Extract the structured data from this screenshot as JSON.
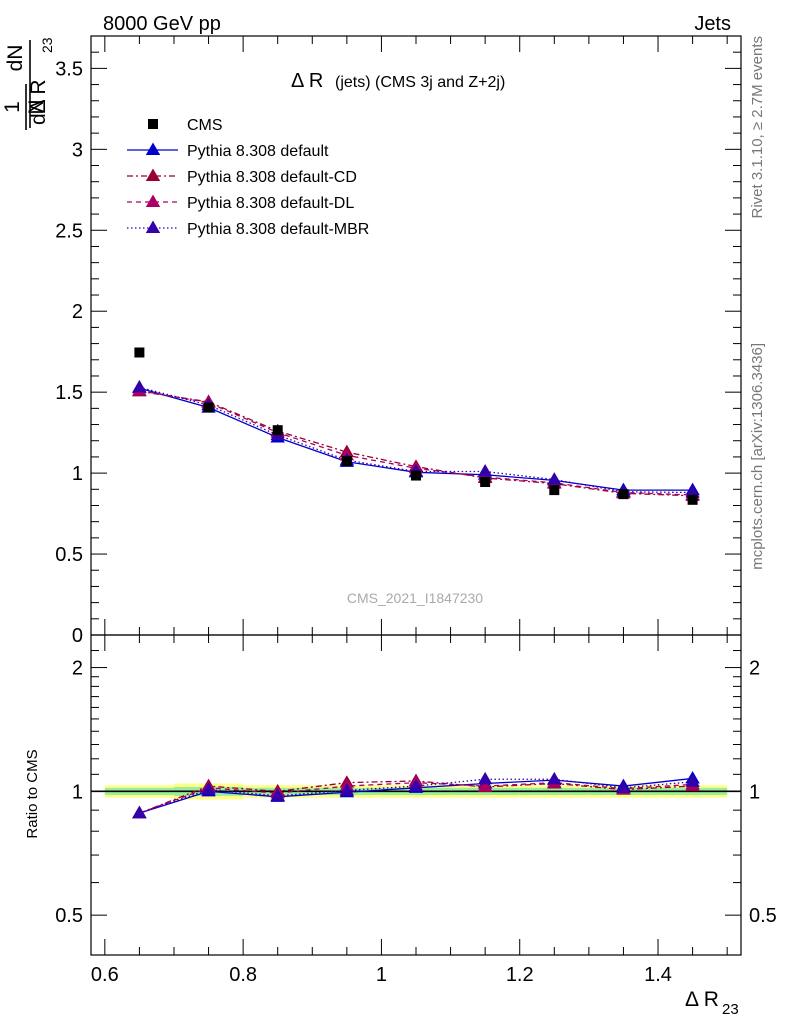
{
  "header": {
    "left": "8000 GeV pp",
    "right": "Jets"
  },
  "side_labels": {
    "rivet": "Rivet 3.1.10, ≥ 2.7M events",
    "mcplots": "mcplots.cern.ch [arXiv:1306.3436]"
  },
  "plot_title": {
    "main": "Δ R",
    "detail": "(jets) (CMS 3j and Z+2j)"
  },
  "watermark": "CMS_2021_I1847230",
  "y_label_top": {
    "one": "1",
    "N": "N",
    "dN": "dN",
    "dDelta": "dΔ R",
    "sub": "23"
  },
  "y_label_bottom": "Ratio to CMS",
  "x_label": {
    "main": "Δ R",
    "sub": "23"
  },
  "legend": [
    {
      "label": "CMS",
      "color": "#000000",
      "marker": "square",
      "line": "none"
    },
    {
      "label": "Pythia 8.308 default",
      "color": "#0000cc",
      "marker": "triangle",
      "line": "solid"
    },
    {
      "label": "Pythia 8.308 default-CD",
      "color": "#990033",
      "marker": "triangle",
      "line": "dashdot"
    },
    {
      "label": "Pythia 8.308 default-DL",
      "color": "#aa0066",
      "marker": "triangle",
      "line": "dashed"
    },
    {
      "label": "Pythia 8.308 default-MBR",
      "color": "#3300aa",
      "marker": "triangle",
      "line": "dotted"
    }
  ],
  "chart_data": [
    {
      "type": "line",
      "panel": "main",
      "xlim": [
        0.58,
        1.52
      ],
      "ylim": [
        0,
        3.7
      ],
      "x_ticks": [
        0.6,
        0.8,
        1.0,
        1.2,
        1.4
      ],
      "y_ticks": [
        0,
        0.5,
        1,
        1.5,
        2,
        2.5,
        3,
        3.5
      ],
      "y_tick_labels": [
        "0",
        "0.5",
        "1",
        "1.5",
        "2",
        "2.5",
        "3",
        "3.5"
      ],
      "x": [
        0.65,
        0.75,
        0.85,
        0.95,
        1.05,
        1.15,
        1.25,
        1.35,
        1.45
      ],
      "series": [
        {
          "name": "CMS",
          "values": [
            1.745,
            1.405,
            1.265,
            1.075,
            0.985,
            0.945,
            0.895,
            0.87,
            0.835
          ]
        },
        {
          "name": "Pythia 8.308 default",
          "values": [
            1.525,
            1.405,
            1.22,
            1.07,
            1.005,
            0.99,
            0.955,
            0.895,
            0.895
          ]
        },
        {
          "name": "Pythia 8.308 default-CD",
          "values": [
            1.505,
            1.44,
            1.26,
            1.13,
            1.04,
            0.97,
            0.935,
            0.875,
            0.86
          ]
        },
        {
          "name": "Pythia 8.308 default-DL",
          "values": [
            1.51,
            1.435,
            1.25,
            1.11,
            1.03,
            0.975,
            0.94,
            0.88,
            0.865
          ]
        },
        {
          "name": "Pythia 8.308 default-MBR",
          "values": [
            1.53,
            1.42,
            1.235,
            1.08,
            1.01,
            1.01,
            0.96,
            0.885,
            0.88
          ]
        }
      ]
    },
    {
      "type": "line",
      "panel": "ratio",
      "xlim": [
        0.58,
        1.52
      ],
      "ylim": [
        0.4,
        2.4
      ],
      "log_y": true,
      "x_ticks": [
        0.6,
        0.8,
        1.0,
        1.2,
        1.4
      ],
      "x_tick_labels": [
        "0.6",
        "0.8",
        "1",
        "1.2",
        "1.4"
      ],
      "y_ticks": [
        0.5,
        1,
        2
      ],
      "y_tick_labels": [
        "0.5",
        "1",
        "2"
      ],
      "x": [
        0.65,
        0.75,
        0.85,
        0.95,
        1.05,
        1.15,
        1.25,
        1.35,
        1.45
      ],
      "band_inner": [
        0.02,
        0.025,
        0.02,
        0.02,
        0.02,
        0.02,
        0.02,
        0.02,
        0.02
      ],
      "band_outer": [
        0.035,
        0.045,
        0.035,
        0.035,
        0.035,
        0.035,
        0.035,
        0.035,
        0.035
      ],
      "series": [
        {
          "name": "Pythia 8.308 default",
          "values": [
            0.885,
            1.0,
            0.97,
            0.995,
            1.02,
            1.045,
            1.065,
            1.03,
            1.075
          ]
        },
        {
          "name": "Pythia 8.308 default-CD",
          "values": [
            0.885,
            1.03,
            1.0,
            1.05,
            1.06,
            1.025,
            1.045,
            1.01,
            1.03
          ]
        },
        {
          "name": "Pythia 8.308 default-DL",
          "values": [
            0.885,
            1.02,
            0.99,
            1.03,
            1.05,
            1.03,
            1.05,
            1.015,
            1.04
          ]
        },
        {
          "name": "Pythia 8.308 default-MBR",
          "values": [
            0.885,
            1.01,
            0.975,
            1.005,
            1.03,
            1.07,
            1.07,
            1.02,
            1.055
          ]
        }
      ]
    }
  ]
}
